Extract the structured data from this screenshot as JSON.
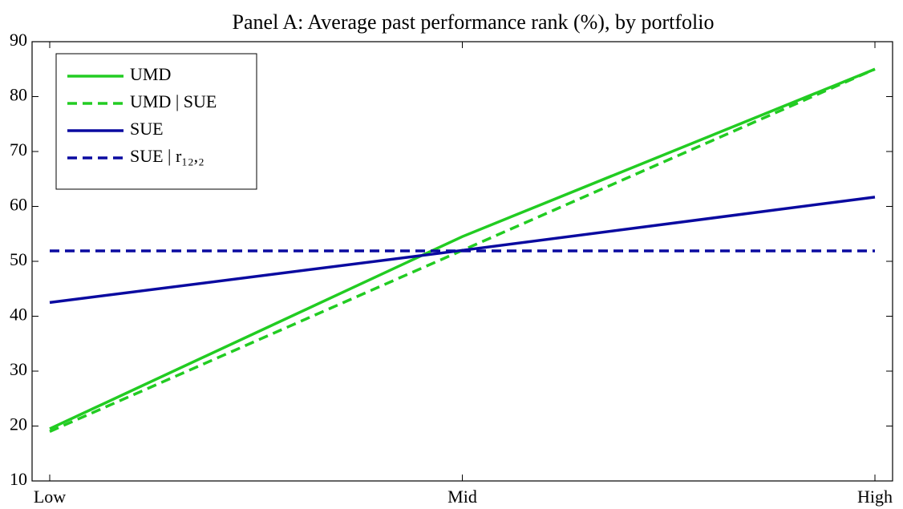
{
  "chart_data": {
    "type": "line",
    "title": "Panel A: Average past performance rank (%), by portfolio",
    "categories": [
      "Low",
      "Mid",
      "High"
    ],
    "series": [
      {
        "name": "UMD",
        "color": "#22cc22",
        "linestyle": "solid",
        "values": [
          19.5,
          54.5,
          85
        ]
      },
      {
        "name": "UMD | SUE",
        "color": "#22cc22",
        "linestyle": "dashed",
        "values": [
          19,
          52,
          85
        ]
      },
      {
        "name": "SUE",
        "color": "#0a0aa0",
        "linestyle": "solid",
        "values": [
          42.5,
          52,
          61.7
        ]
      },
      {
        "name": "SUE | r₁₂,₂",
        "color": "#0a0aa0",
        "linestyle": "dashed",
        "values": [
          51.9,
          51.9,
          51.9
        ]
      }
    ],
    "ylim": [
      10,
      90
    ],
    "yticks": [
      10,
      20,
      30,
      40,
      50,
      60,
      70,
      80,
      90
    ],
    "grid": false,
    "legend": "upper-left"
  }
}
